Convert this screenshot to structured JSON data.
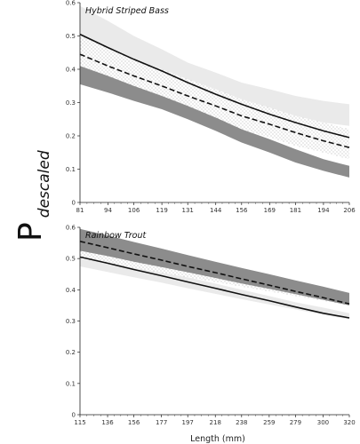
{
  "figure": {
    "ylabel_main": "P",
    "ylabel_sub": "descaled",
    "xlabel": "Length (mm)"
  },
  "chart_data": [
    {
      "type": "line",
      "title": "Hybrid Striped Bass",
      "xlabel": "",
      "ylabel": "",
      "x_ticks": [
        "81",
        "94",
        "106",
        "119",
        "131",
        "144",
        "156",
        "169",
        "181",
        "194",
        "206"
      ],
      "xlim": [
        81,
        206
      ],
      "ylim": [
        0,
        0.6
      ],
      "y_ticks": [
        "0",
        "0.1",
        "0.2",
        "0.3",
        "0.4",
        "0.5",
        "0.6"
      ],
      "grid": false,
      "x": [
        81,
        94,
        106,
        119,
        131,
        144,
        156,
        169,
        181,
        194,
        206
      ],
      "series": [
        {
          "style": "solid-line-light-band",
          "values": [
            0.505,
            0.465,
            0.43,
            0.395,
            0.36,
            0.325,
            0.295,
            0.265,
            0.24,
            0.215,
            0.195
          ],
          "lower": [
            0.43,
            0.41,
            0.39,
            0.37,
            0.345,
            0.32,
            0.3,
            0.28,
            0.26,
            0.24,
            0.23
          ],
          "upper": [
            0.59,
            0.545,
            0.5,
            0.46,
            0.42,
            0.39,
            0.36,
            0.34,
            0.32,
            0.305,
            0.295
          ],
          "fill": "#eaeaea",
          "line_color": "#111111"
        },
        {
          "style": "dashed-line-dotted-band",
          "values": [
            0.445,
            0.41,
            0.38,
            0.35,
            0.32,
            0.29,
            0.26,
            0.235,
            0.21,
            0.185,
            0.165
          ],
          "lower": [
            0.395,
            0.37,
            0.34,
            0.31,
            0.28,
            0.25,
            0.22,
            0.195,
            0.17,
            0.15,
            0.13
          ],
          "upper": [
            0.5,
            0.465,
            0.43,
            0.4,
            0.37,
            0.34,
            0.31,
            0.285,
            0.26,
            0.24,
            0.22
          ],
          "fill": "dots",
          "line_color": "#111111"
        },
        {
          "style": "dark-band",
          "values": [
            0.385,
            0.355,
            0.325,
            0.3,
            0.27,
            0.24,
            0.21,
            0.18,
            0.15,
            0.12,
            0.1
          ],
          "lower": [
            0.355,
            0.33,
            0.305,
            0.28,
            0.25,
            0.215,
            0.18,
            0.15,
            0.12,
            0.095,
            0.075
          ],
          "upper": [
            0.41,
            0.38,
            0.35,
            0.32,
            0.29,
            0.255,
            0.22,
            0.19,
            0.16,
            0.13,
            0.11
          ],
          "fill": "#8c8c8c",
          "line_color": null
        }
      ]
    },
    {
      "type": "line",
      "title": "Rainbow Trout",
      "xlabel": "Length (mm)",
      "ylabel": "",
      "x_ticks": [
        "115",
        "136",
        "156",
        "177",
        "197",
        "218",
        "238",
        "259",
        "279",
        "300",
        "320"
      ],
      "xlim": [
        115,
        320
      ],
      "ylim": [
        0,
        0.6
      ],
      "y_ticks": [
        "0",
        "0.1",
        "0.2",
        "0.3",
        "0.4",
        "0.5",
        "0.6"
      ],
      "grid": false,
      "x": [
        115,
        136,
        156,
        177,
        197,
        218,
        238,
        259,
        279,
        300,
        320
      ],
      "series": [
        {
          "style": "solid-line-light-band",
          "values": [
            0.505,
            0.485,
            0.465,
            0.445,
            0.425,
            0.405,
            0.385,
            0.365,
            0.345,
            0.325,
            0.31
          ],
          "lower": [
            0.475,
            0.457,
            0.44,
            0.423,
            0.405,
            0.387,
            0.37,
            0.353,
            0.337,
            0.32,
            0.305
          ],
          "upper": [
            0.52,
            0.5,
            0.48,
            0.46,
            0.44,
            0.42,
            0.4,
            0.38,
            0.36,
            0.343,
            0.325
          ],
          "fill": "#eaeaea",
          "line_color": "#111111"
        },
        {
          "style": "dashed-line-dotted-band",
          "values": [
            0.555,
            0.535,
            0.515,
            0.495,
            0.475,
            0.455,
            0.435,
            0.415,
            0.395,
            0.375,
            0.355
          ],
          "lower": [
            0.5,
            0.485,
            0.47,
            0.455,
            0.44,
            0.425,
            0.41,
            0.395,
            0.38,
            0.365,
            0.35
          ],
          "upper": [
            0.56,
            0.54,
            0.52,
            0.5,
            0.48,
            0.46,
            0.44,
            0.42,
            0.4,
            0.385,
            0.37
          ],
          "fill": "dots",
          "line_color": "#111111"
        },
        {
          "style": "dark-band",
          "values": [
            0.555,
            0.537,
            0.519,
            0.5,
            0.482,
            0.464,
            0.446,
            0.428,
            0.41,
            0.392,
            0.374
          ],
          "lower": [
            0.525,
            0.508,
            0.49,
            0.473,
            0.456,
            0.438,
            0.42,
            0.403,
            0.386,
            0.368,
            0.35
          ],
          "upper": [
            0.595,
            0.574,
            0.553,
            0.532,
            0.511,
            0.49,
            0.47,
            0.45,
            0.43,
            0.41,
            0.39
          ],
          "fill": "#8c8c8c",
          "line_color": null
        }
      ]
    }
  ]
}
